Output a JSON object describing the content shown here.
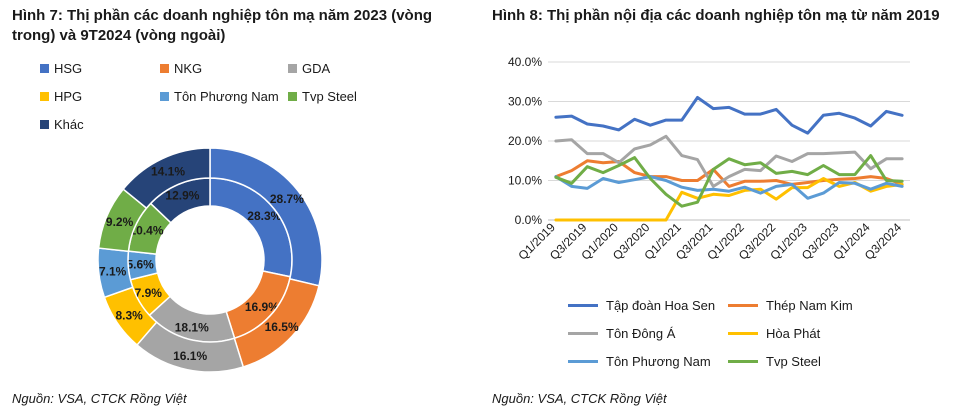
{
  "left": {
    "title": "Hình 7: Thị phần các doanh nghiệp tôn mạ năm 2023 (vòng trong) và 9T2024 (vòng ngoài)",
    "source": "Nguồn: VSA, CTCK Rồng Việt"
  },
  "right": {
    "title": "Hình 8: Thị phần nội địa các doanh nghiệp tôn mạ từ năm 2019",
    "source": "Nguồn: VSA, CTCK Rồng Việt"
  },
  "chart_data": [
    {
      "type": "donut",
      "legend_placement": "top",
      "categories": [
        "HSG",
        "NKG",
        "GDA",
        "HPG",
        "Tôn Phương Nam",
        "Tvp Steel",
        "Khác"
      ],
      "colors": [
        "#4472C4",
        "#ED7D31",
        "#A5A5A5",
        "#FFC000",
        "#5B9BD5",
        "#70AD47",
        "#264478"
      ],
      "series": [
        {
          "name": "2023",
          "ring": "inner",
          "values": [
            28.3,
            16.9,
            18.1,
            7.9,
            5.6,
            10.4,
            12.9
          ],
          "labels": [
            "28.3%",
            "16.9%",
            "18.1%",
            "7.9%",
            "5.6%",
            "10.4%",
            "12.9%"
          ]
        },
        {
          "name": "9T2024",
          "ring": "outer",
          "values": [
            28.7,
            16.5,
            16.1,
            8.3,
            7.1,
            9.2,
            14.1
          ],
          "labels": [
            "28.7%",
            "16.5%",
            "16.1%",
            "8.3%",
            "7.1%",
            "9.2%",
            "14.1%"
          ]
        }
      ]
    },
    {
      "type": "line",
      "x": [
        "Q1/2019",
        "Q2/2019",
        "Q3/2019",
        "Q4/2019",
        "Q1/2020",
        "Q2/2020",
        "Q3/2020",
        "Q4/2020",
        "Q1/2021",
        "Q2/2021",
        "Q3/2021",
        "Q4/2021",
        "Q1/2022",
        "Q2/2022",
        "Q3/2022",
        "Q4/2022",
        "Q1/2023",
        "Q2/2023",
        "Q3/2023",
        "Q4/2023",
        "Q1/2024",
        "Q2/2024",
        "Q3/2024"
      ],
      "x_tick_labels": [
        "Q1/2019",
        "Q3/2019",
        "Q1/2020",
        "Q3/2020",
        "Q1/2021",
        "Q3/2021",
        "Q1/2022",
        "Q3/2022",
        "Q1/2023",
        "Q3/2023",
        "Q1/2024",
        "Q3/2024"
      ],
      "y_tick_labels": [
        "0.0%",
        "10.0%",
        "20.0%",
        "30.0%",
        "40.0%"
      ],
      "ylim": [
        0,
        40
      ],
      "grid": true,
      "legend_placement": "bottom",
      "series": [
        {
          "name": "Tập đoàn Hoa Sen",
          "color": "#4472C4",
          "values": [
            26.0,
            26.3,
            24.3,
            23.8,
            22.8,
            25.5,
            24.0,
            25.3,
            25.3,
            31.0,
            28.2,
            28.5,
            26.8,
            26.8,
            28.0,
            24.0,
            22.0,
            26.5,
            27.0,
            25.8,
            23.8,
            27.5,
            26.5
          ]
        },
        {
          "name": "Thép Nam Kim",
          "color": "#ED7D31",
          "values": [
            11.0,
            12.5,
            15.0,
            14.5,
            14.8,
            12.0,
            11.0,
            11.0,
            10.0,
            10.0,
            12.8,
            8.5,
            9.8,
            9.8,
            10.0,
            9.0,
            9.5,
            10.0,
            10.3,
            10.5,
            11.0,
            10.5,
            9.0
          ]
        },
        {
          "name": "Tôn Đông Á",
          "color": "#A5A5A5",
          "values": [
            20.0,
            20.3,
            16.8,
            16.8,
            14.5,
            18.0,
            19.0,
            21.2,
            16.3,
            15.3,
            8.5,
            11.0,
            12.8,
            12.5,
            16.2,
            14.8,
            16.8,
            16.8,
            17.0,
            17.2,
            13.0,
            15.5,
            15.5
          ]
        },
        {
          "name": "Hòa Phát",
          "color": "#FFC000",
          "values": [
            0,
            0,
            0,
            0,
            0,
            0,
            0,
            0,
            7.0,
            5.5,
            6.5,
            6.2,
            7.5,
            7.8,
            5.3,
            8.2,
            8.2,
            10.5,
            8.5,
            9.5,
            7.3,
            8.5,
            9.0
          ]
        },
        {
          "name": "Tôn Phương Nam",
          "color": "#5B9BD5",
          "values": [
            11.0,
            8.5,
            8.0,
            10.5,
            9.5,
            10.2,
            11.0,
            10.0,
            8.3,
            7.5,
            7.8,
            7.3,
            8.3,
            6.8,
            8.5,
            9.0,
            5.5,
            6.8,
            9.5,
            9.3,
            7.8,
            9.3,
            8.5
          ]
        },
        {
          "name": "Tvp Steel",
          "color": "#70AD47",
          "values": [
            10.8,
            9.3,
            13.5,
            12.0,
            13.8,
            15.8,
            10.5,
            6.5,
            3.5,
            4.5,
            12.8,
            15.5,
            14.0,
            14.5,
            11.8,
            12.3,
            11.5,
            13.8,
            11.5,
            11.5,
            16.3,
            10.0,
            9.8
          ]
        }
      ]
    }
  ]
}
